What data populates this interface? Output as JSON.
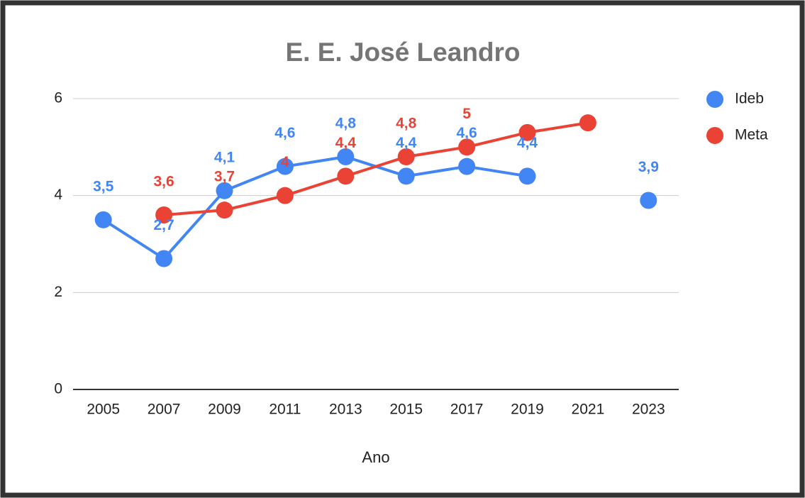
{
  "chart_data": {
    "type": "line",
    "title": "E. E. José Leandro",
    "x_label": "Ano",
    "categories": [
      "2005",
      "2007",
      "2009",
      "2011",
      "2013",
      "2015",
      "2017",
      "2019",
      "2021",
      "2023"
    ],
    "series": [
      {
        "name": "Ideb",
        "color": "#4285f4",
        "values": [
          3.5,
          2.7,
          4.1,
          4.6,
          4.8,
          4.4,
          4.6,
          4.4,
          null,
          3.9
        ],
        "value_labels": [
          "3,5",
          "2,7",
          "4,1",
          "4,6",
          "4,8",
          "4,4",
          "4,6",
          "4,4",
          null,
          "3,9"
        ]
      },
      {
        "name": "Meta",
        "color": "#ea4335",
        "values": [
          null,
          3.6,
          3.7,
          4,
          4.4,
          4.8,
          5,
          5.3,
          5.5,
          null
        ],
        "value_labels": [
          null,
          "3,6",
          "3,7",
          "4",
          "4,4",
          "4,8",
          "5",
          null,
          null,
          null
        ]
      }
    ],
    "ylim": [
      0,
      6
    ],
    "yticks": [
      0,
      2,
      4,
      6
    ],
    "grid": true,
    "legend": "right"
  }
}
